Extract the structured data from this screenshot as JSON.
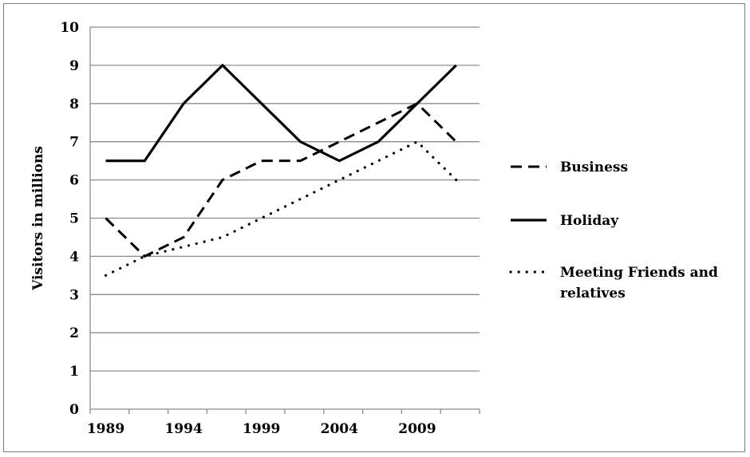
{
  "chart_data": {
    "type": "line",
    "title": "",
    "xlabel": "",
    "ylabel": "Visitors in millions",
    "ylim": [
      0,
      10
    ],
    "xlim": [
      1988,
      2013
    ],
    "yticks": [
      "0",
      "1",
      "2",
      "3",
      "4",
      "5",
      "6",
      "7",
      "8",
      "9",
      "10"
    ],
    "xticks": [
      {
        "value": 1989,
        "label": "1989"
      },
      {
        "value": 1994,
        "label": "1994"
      },
      {
        "value": 1999,
        "label": "1999"
      },
      {
        "value": 2004,
        "label": "2004"
      },
      {
        "value": 2009,
        "label": "2009"
      }
    ],
    "grid": "horizontal",
    "legend": "right",
    "x": [
      1989,
      1991.5,
      1994,
      1996.5,
      1999,
      2001.5,
      2004,
      2006.5,
      2009,
      2011.5
    ],
    "series": [
      {
        "name": "Business",
        "style": "dashed",
        "color": "#000000",
        "values": [
          5,
          4,
          4.5,
          6,
          6.5,
          6.5,
          7,
          7.5,
          8,
          7
        ]
      },
      {
        "name": "Holiday",
        "style": "solid",
        "color": "#000000",
        "values": [
          6.5,
          6.5,
          8,
          9,
          8,
          7,
          6.5,
          7,
          8,
          9
        ]
      },
      {
        "name": "Meeting Friends and relatives",
        "style": "dotted",
        "color": "#000000",
        "values": [
          3.5,
          4,
          4.25,
          4.5,
          5,
          5.5,
          6,
          6.5,
          7,
          6
        ]
      }
    ]
  }
}
